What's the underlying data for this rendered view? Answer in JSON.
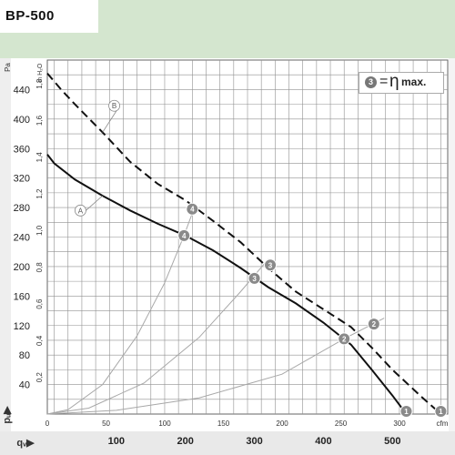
{
  "header": {
    "title": "BP-500"
  },
  "legend": {
    "marker": "3",
    "equals": "=",
    "eta": "η",
    "suffix": "max."
  },
  "chart_data": {
    "type": "line",
    "x_axis_bottom": {
      "ticks": [
        "100",
        "200",
        "300",
        "400",
        "500"
      ],
      "label": "qᵥ▶",
      "range": [
        0,
        580
      ]
    },
    "x_axis_top_cfm": {
      "ticks": [
        "0",
        "50",
        "100",
        "150",
        "200",
        "250",
        "300"
      ],
      "unit": "cfm",
      "range": [
        0,
        341
      ]
    },
    "y_axis_pa": {
      "ticks": [
        "40",
        "80",
        "120",
        "160",
        "200",
        "240",
        "280",
        "320",
        "360",
        "400",
        "440"
      ],
      "label": "pᵤ▶",
      "unit": "Pa",
      "range": [
        0,
        480
      ]
    },
    "y_axis_inh2o": {
      "ticks": [
        "0,2",
        "0,4",
        "0,6",
        "0,8",
        "1,0",
        "1,2",
        "1,4",
        "1,6",
        "1,8"
      ],
      "unit": "in H₂O",
      "range": [
        0,
        1.93
      ]
    },
    "series": [
      {
        "name": "A",
        "style": "solid",
        "x": [
          0,
          10,
          40,
          80,
          120,
          160,
          200,
          240,
          280,
          320,
          360,
          400,
          440,
          470,
          500,
          520
        ],
        "y": [
          352,
          340,
          318,
          296,
          276,
          258,
          242,
          222,
          198,
          172,
          150,
          124,
          94,
          60,
          25,
          0
        ]
      },
      {
        "name": "B",
        "style": "dashed",
        "x": [
          0,
          20,
          40,
          80,
          120,
          160,
          200,
          240,
          280,
          320,
          360,
          400,
          440,
          470,
          500,
          540,
          570
        ],
        "y": [
          462,
          440,
          420,
          382,
          342,
          312,
          290,
          262,
          233,
          198,
          166,
          142,
          118,
          90,
          60,
          25,
          0
        ]
      }
    ],
    "markers": [
      {
        "label": "1",
        "x": 520,
        "y": 0
      },
      {
        "label": "1",
        "x": 570,
        "y": 0
      },
      {
        "label": "2",
        "x": 430,
        "y": 102
      },
      {
        "label": "2",
        "x": 473,
        "y": 122
      },
      {
        "label": "3",
        "x": 300,
        "y": 184
      },
      {
        "label": "3",
        "x": 323,
        "y": 202
      },
      {
        "label": "4",
        "x": 198,
        "y": 242
      },
      {
        "label": "4",
        "x": 210,
        "y": 278
      }
    ],
    "curve_labels": [
      {
        "label": "A",
        "x": 48,
        "y": 276
      },
      {
        "label": "B",
        "x": 97,
        "y": 418
      }
    ],
    "system_curves": [
      {
        "x": [
          0,
          30,
          80,
          130,
          170,
          198,
          215
        ],
        "y": [
          0,
          6,
          40,
          106,
          178,
          242,
          285
        ]
      },
      {
        "x": [
          0,
          60,
          140,
          220,
          280,
          320
        ],
        "y": [
          0,
          8,
          42,
          104,
          166,
          210
        ]
      },
      {
        "x": [
          0,
          100,
          220,
          340,
          430,
          488
        ],
        "y": [
          0,
          5,
          22,
          54,
          102,
          130
        ]
      }
    ],
    "colors": {
      "grid": "#909090",
      "curve": "#111111",
      "system_curve": "#a8a8a8",
      "marker": "#8a8a8a"
    }
  }
}
